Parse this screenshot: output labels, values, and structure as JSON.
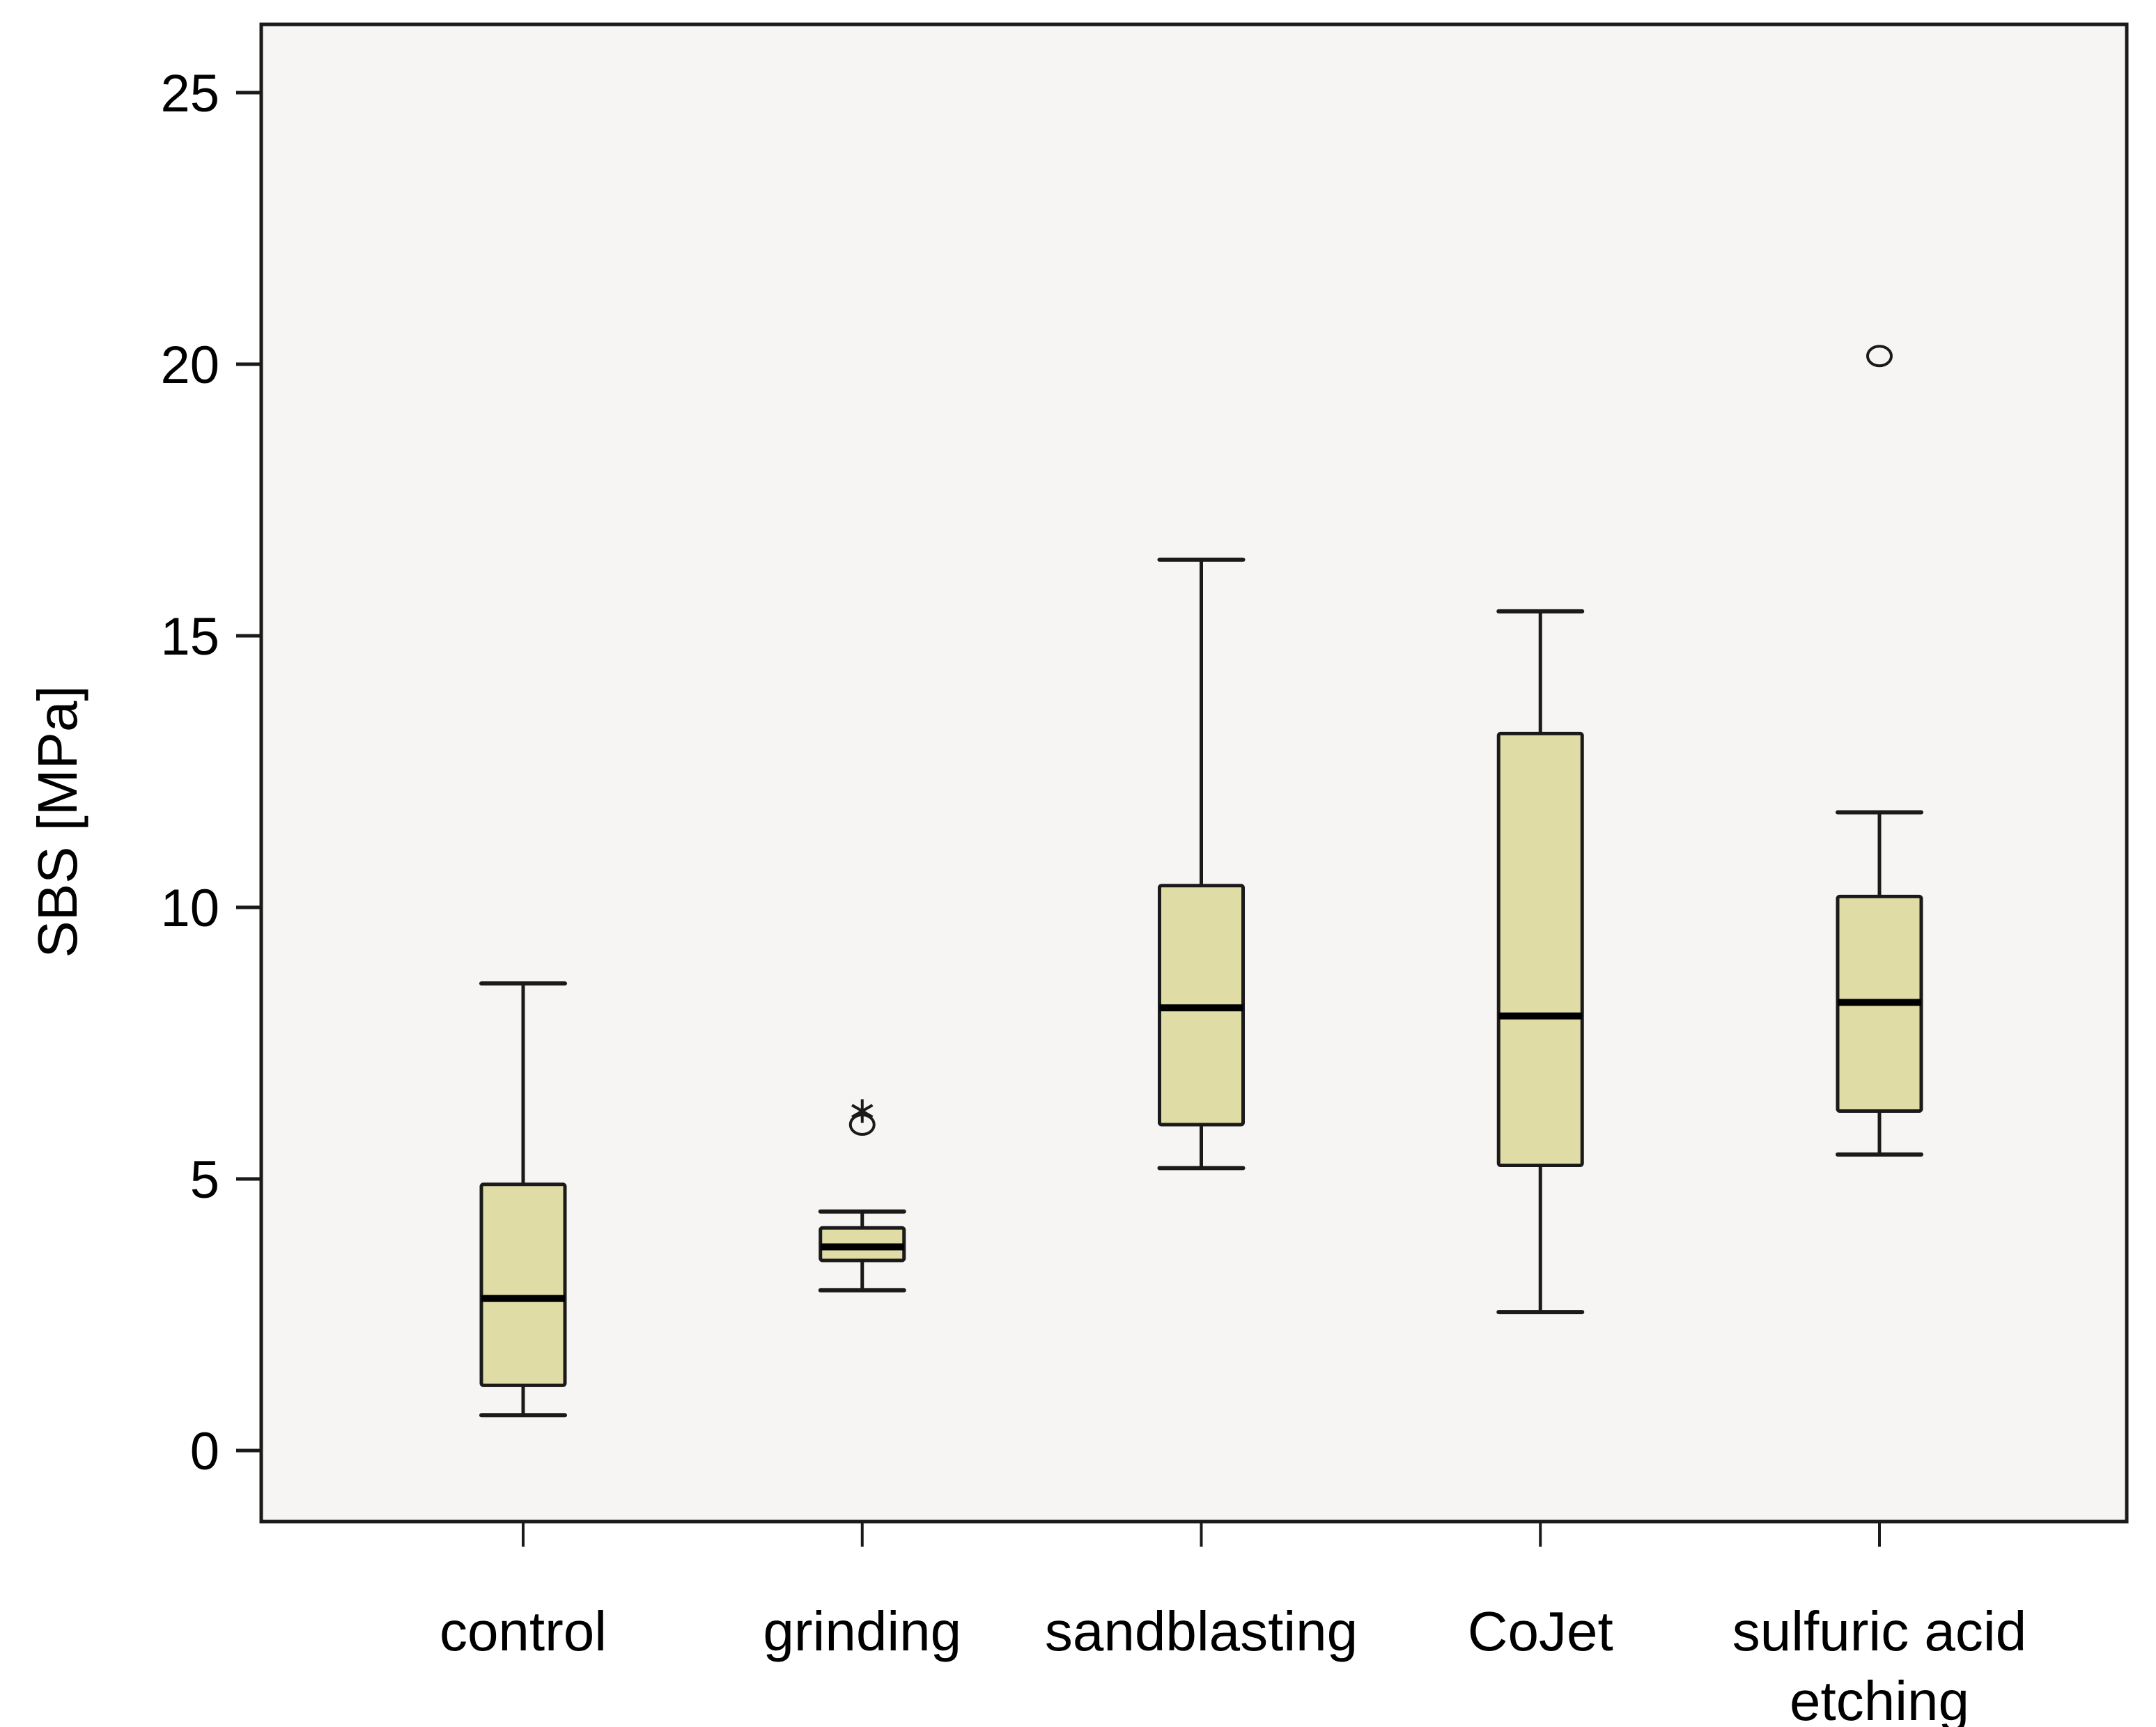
{
  "chart_data": {
    "type": "boxplot",
    "title": "",
    "xlabel": "",
    "ylabel": "SBS [MPa]",
    "ylim": [
      -1.4,
      26.2
    ],
    "yticks": [
      0,
      5,
      10,
      15,
      20,
      25
    ],
    "ytick_labels": [
      "0",
      "5",
      "10",
      "15",
      "20",
      "25"
    ],
    "grid": false,
    "legend": "none",
    "colors": {
      "box_fill": "#E0DCA6",
      "plot_background": "#F6F5F3",
      "line": "#1a1a1a"
    },
    "categories": [
      "control",
      "grinding",
      "sandblasting",
      "CoJet",
      "sulfuric acid etching"
    ],
    "category_label_lines": [
      [
        "control"
      ],
      [
        "grinding"
      ],
      [
        "sandblasting"
      ],
      [
        "CoJet"
      ],
      [
        "sulfuric acid",
        "etching"
      ]
    ],
    "boxes": [
      {
        "category": "control",
        "whisker_low": 0.65,
        "q1": 1.2,
        "median": 2.8,
        "q3": 4.9,
        "whisker_high": 8.6,
        "outliers": [],
        "extremes": []
      },
      {
        "category": "grinding",
        "whisker_low": 2.95,
        "q1": 3.5,
        "median": 3.75,
        "q3": 4.1,
        "whisker_high": 4.4,
        "outliers": [
          6.0
        ],
        "extremes": [
          6.25
        ]
      },
      {
        "category": "sandblasting",
        "whisker_low": 5.2,
        "q1": 6.0,
        "median": 8.15,
        "q3": 10.4,
        "whisker_high": 16.4,
        "outliers": [],
        "extremes": []
      },
      {
        "category": "CoJet",
        "whisker_low": 2.55,
        "q1": 5.25,
        "median": 8.0,
        "q3": 13.2,
        "whisker_high": 15.45,
        "outliers": [],
        "extremes": []
      },
      {
        "category": "sulfuric acid etching",
        "whisker_low": 5.45,
        "q1": 6.25,
        "median": 8.25,
        "q3": 10.2,
        "whisker_high": 11.75,
        "outliers": [
          20.15
        ],
        "extremes": []
      }
    ]
  }
}
